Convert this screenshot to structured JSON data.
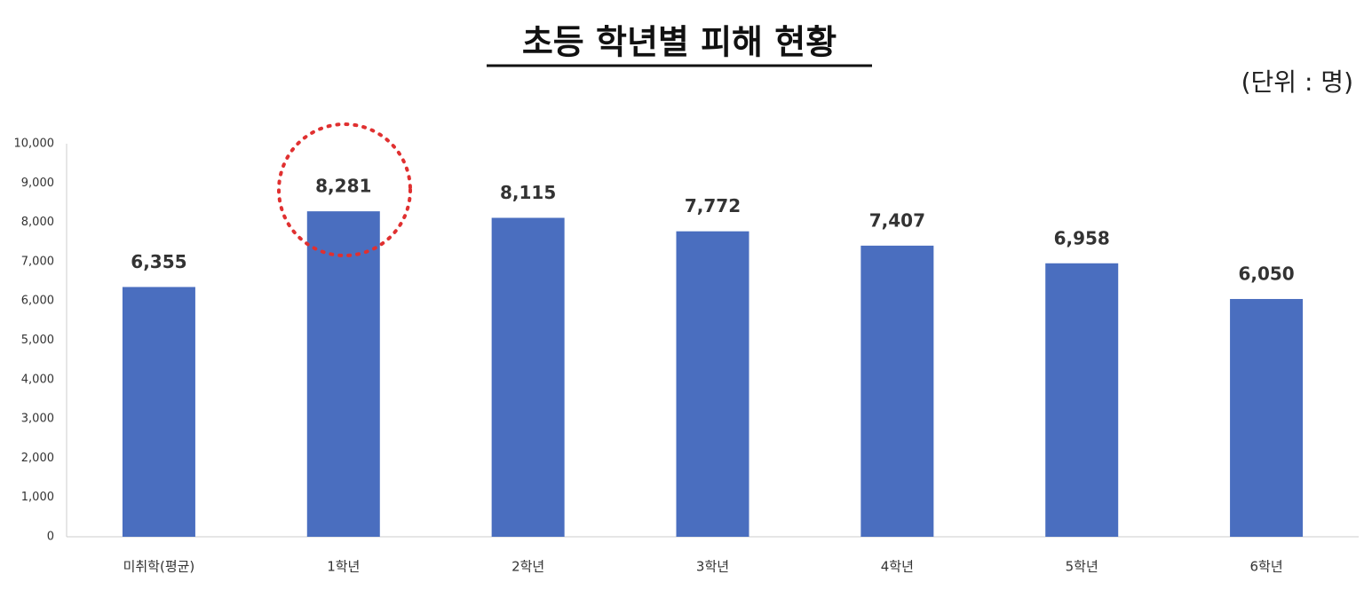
{
  "chart_data": {
    "type": "bar",
    "title": "초등 학년별 피해 현황",
    "unit": "(단위 : 명)",
    "categories": [
      "미취학(평균)",
      "1학년",
      "2학년",
      "3학년",
      "4학년",
      "5학년",
      "6학년"
    ],
    "values": [
      6355,
      8281,
      8115,
      7772,
      7407,
      6958,
      6050
    ],
    "value_labels": [
      "6,355",
      "8,281",
      "8,115",
      "7,772",
      "7,407",
      "6,958",
      "6,050"
    ],
    "color": "#4a6ebf",
    "ylim": [
      0,
      10000
    ],
    "yticks": [
      0,
      {
        "value": 1000,
        "label": "1,000"
      },
      {
        "value": 2000,
        "label": "2,000"
      },
      {
        "value": 3000,
        "label": "3,000"
      },
      {
        "value": 4000,
        "label": "4,000"
      },
      {
        "value": 5000,
        "label": "5,000"
      },
      {
        "value": 6000,
        "label": "6,000"
      },
      {
        "value": 7000,
        "label": "7,000"
      },
      {
        "value": 8000,
        "label": "8,000"
      },
      {
        "value": 9000,
        "label": "9,000"
      },
      {
        "value": 10000,
        "label": "10,000"
      }
    ],
    "grid": false
  }
}
